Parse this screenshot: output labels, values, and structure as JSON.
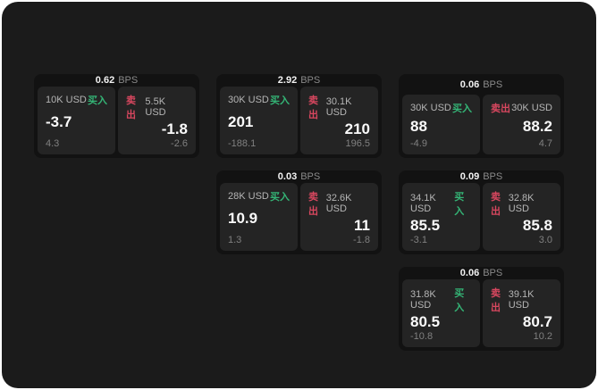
{
  "colors": {
    "buy_green": "#34b576",
    "sell_red": "#d8475f",
    "canvas_bg": "#1b1b1b",
    "card_bg": "#121212",
    "panel_bg": "#242424"
  },
  "labels": {
    "bps_unit": "BPS",
    "buy_action": "买入",
    "sell_action": "卖出"
  },
  "cards": [
    {
      "row": 1,
      "col": 1,
      "bps_value": "0.62",
      "buy": {
        "amount": "10K USD",
        "price": "-3.7",
        "delta": "4.3"
      },
      "sell": {
        "amount": "5.5K USD",
        "price": "-1.8",
        "delta": "-2.6"
      }
    },
    {
      "row": 1,
      "col": 2,
      "bps_value": "2.92",
      "buy": {
        "amount": "30K USD",
        "price": "201",
        "delta": "-188.1"
      },
      "sell": {
        "amount": "30.1K USD",
        "price": "210",
        "delta": "196.5"
      }
    },
    {
      "row": 1,
      "col": 3,
      "bps_value": "0.06",
      "buy": {
        "amount": "30K USD",
        "price": "88",
        "delta": "-4.9"
      },
      "sell": {
        "amount": "30K USD",
        "price": "88.2",
        "delta": "4.7"
      }
    },
    {
      "row": 2,
      "col": 2,
      "bps_value": "0.03",
      "buy": {
        "amount": "28K USD",
        "price": "10.9",
        "delta": "1.3"
      },
      "sell": {
        "amount": "32.6K USD",
        "price": "11",
        "delta": "-1.8"
      }
    },
    {
      "row": 2,
      "col": 3,
      "bps_value": "0.09",
      "buy": {
        "amount": "34.1K USD",
        "price": "85.5",
        "delta": "-3.1"
      },
      "sell": {
        "amount": "32.8K USD",
        "price": "85.8",
        "delta": "3.0"
      }
    },
    {
      "row": 3,
      "col": 3,
      "bps_value": "0.06",
      "buy": {
        "amount": "31.8K USD",
        "price": "80.5",
        "delta": "-10.8"
      },
      "sell": {
        "amount": "39.1K USD",
        "price": "80.7",
        "delta": "10.2"
      }
    }
  ]
}
